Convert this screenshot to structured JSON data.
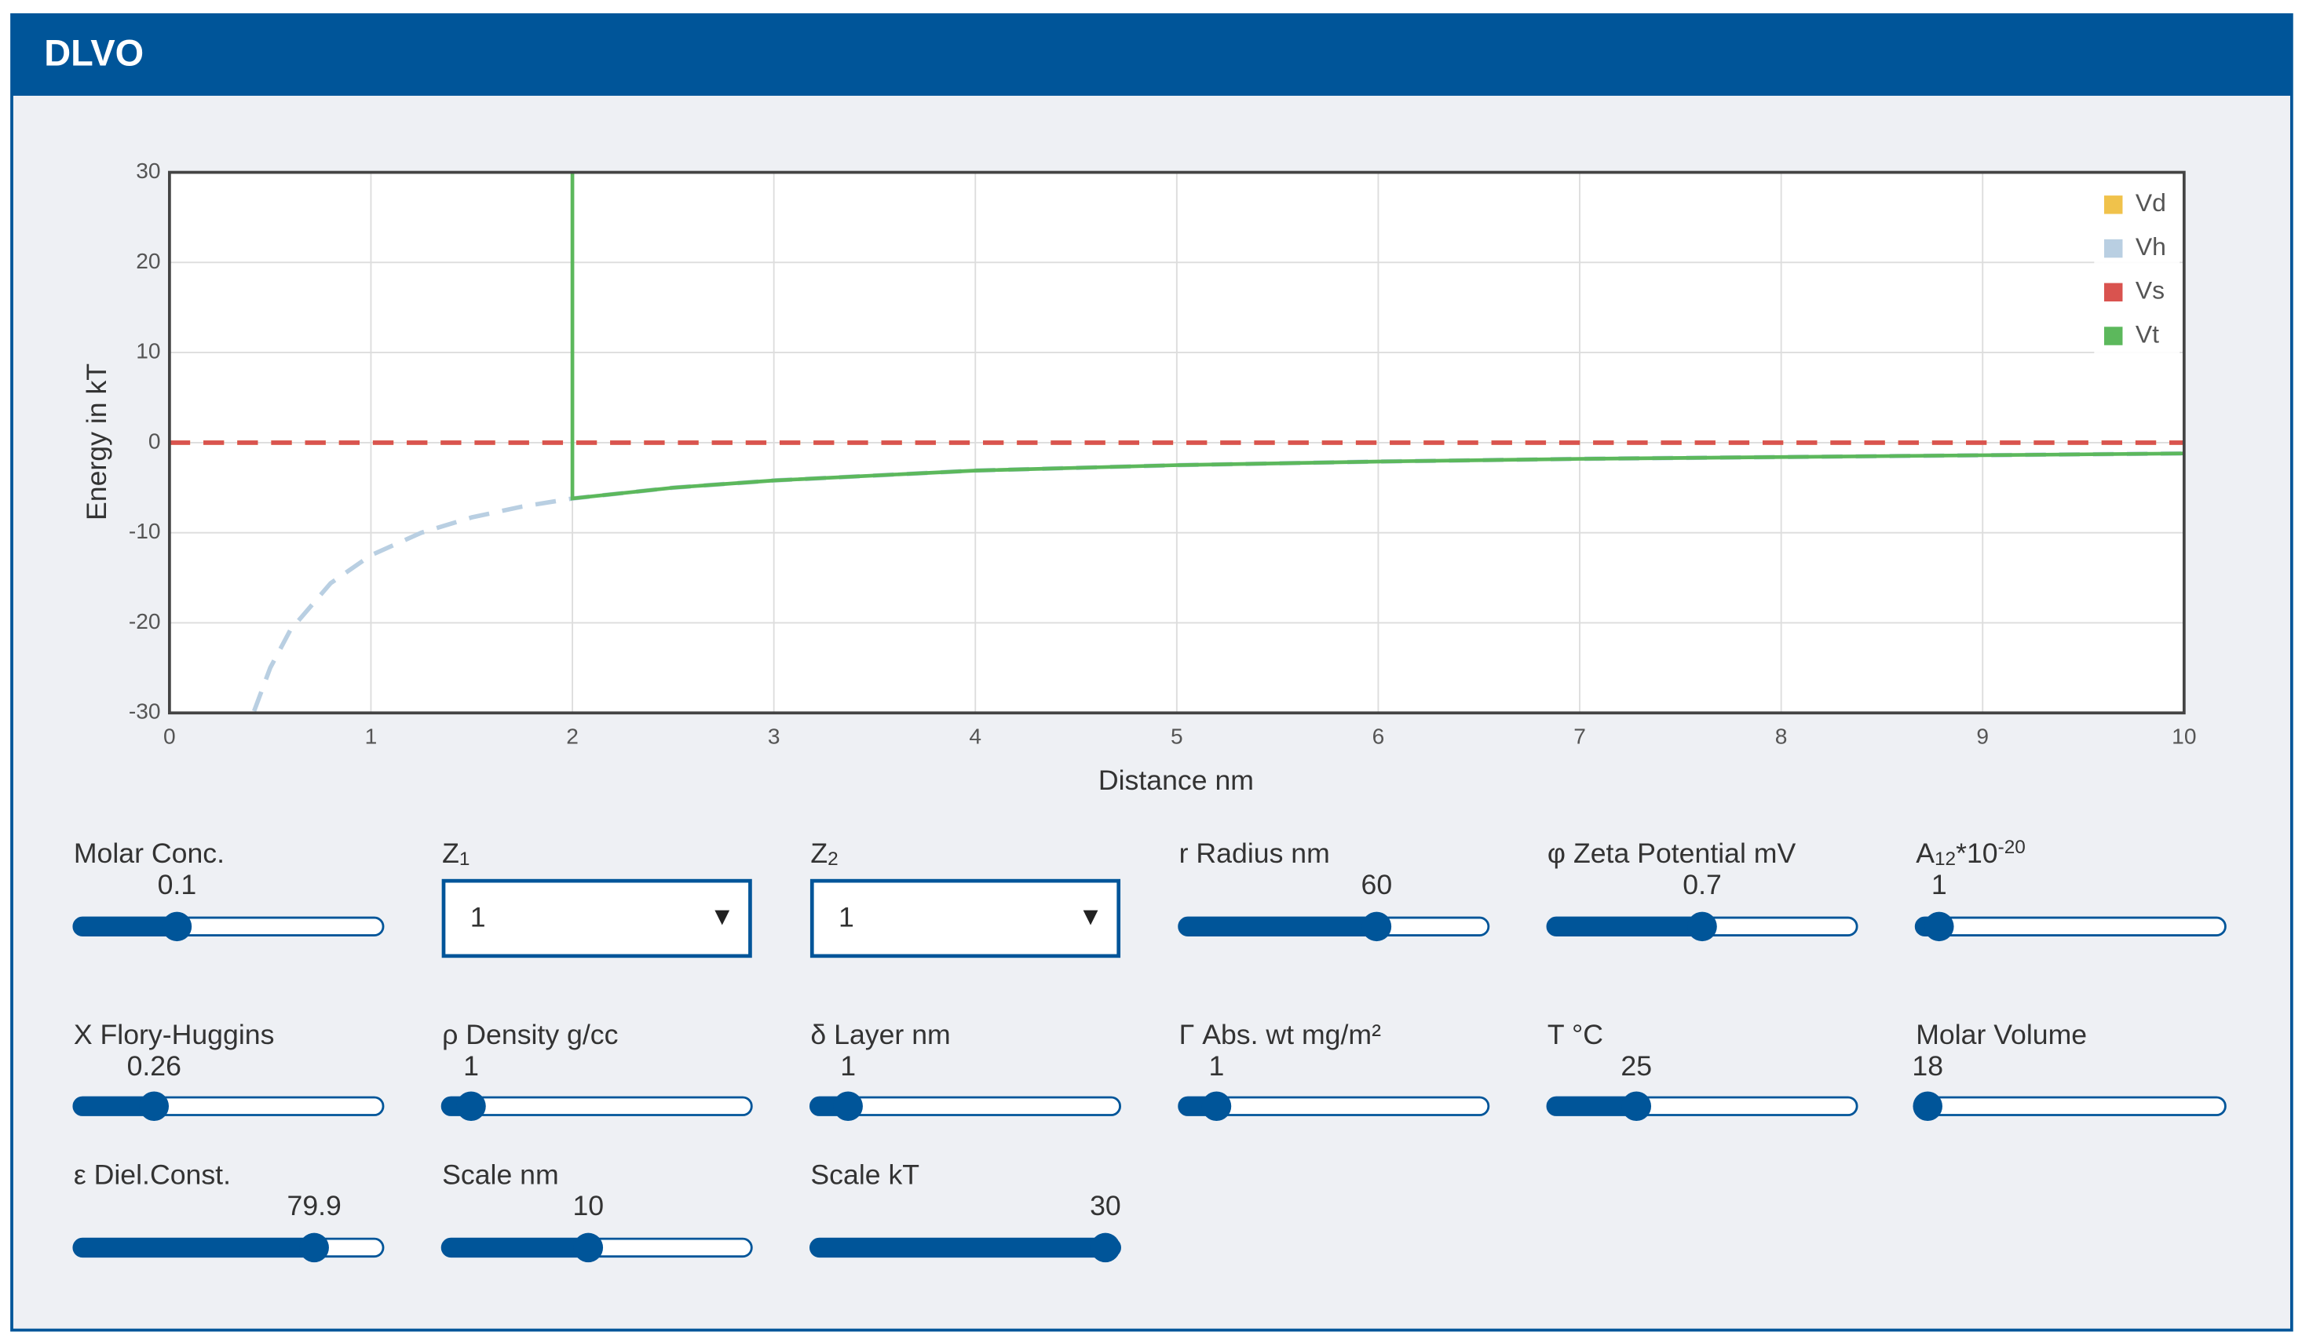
{
  "header": {
    "title": "DLVO"
  },
  "chart_data": {
    "type": "line",
    "xlabel": "Distance nm",
    "ylabel": "Energy in kT",
    "x": [
      0,
      0.42,
      0.5,
      0.6,
      0.8,
      1,
      1.25,
      1.5,
      1.75,
      2,
      2,
      2.5,
      3,
      4,
      5,
      6,
      7,
      8,
      9,
      10
    ],
    "series": [
      {
        "name": "Vd",
        "color": "#f0c24b",
        "dashed": true,
        "values": [
          0,
          0,
          0,
          0,
          0,
          0,
          0,
          0,
          0,
          0,
          0,
          0,
          0,
          0,
          0,
          0,
          0,
          0,
          0,
          0
        ]
      },
      {
        "name": "Vh",
        "color": "#b9cfe2",
        "dashed": true,
        "values": [
          null,
          -29.8,
          -25,
          -20.8,
          -15.6,
          -12.5,
          -10,
          -8.3,
          -7.1,
          -6.2,
          -6.2,
          -5,
          -4.2,
          -3.1,
          -2.5,
          -2.1,
          -1.8,
          -1.6,
          -1.4,
          -1.2
        ]
      },
      {
        "name": "Vs",
        "color": "#d9534f",
        "dashed": true,
        "values": [
          0,
          0,
          0,
          0,
          0,
          0,
          0,
          0,
          0,
          0,
          0,
          0,
          0,
          0,
          0,
          0,
          0,
          0,
          0,
          0
        ]
      },
      {
        "name": "Vt",
        "color": "#5cb85c",
        "dashed": false,
        "values": [
          null,
          null,
          null,
          null,
          null,
          null,
          null,
          null,
          null,
          30,
          -6.2,
          -5,
          -4.2,
          -3.1,
          -2.5,
          -2.1,
          -1.8,
          -1.6,
          -1.4,
          -1.2
        ]
      }
    ],
    "xlim": [
      0,
      10
    ],
    "ylim": [
      -30,
      30
    ],
    "xticks": [
      0,
      1,
      2,
      3,
      4,
      5,
      6,
      7,
      8,
      9,
      10
    ],
    "yticks": [
      -30,
      -20,
      -10,
      0,
      10,
      20,
      30
    ],
    "grid": true,
    "legend": "top-right"
  },
  "controls": [
    {
      "label": [
        "Molar Conc."
      ],
      "kind": "slider",
      "value": 0.1
    },
    {
      "label": [
        "Z",
        "1"
      ],
      "kind": "select",
      "value": 1
    },
    {
      "label": [
        "Z",
        "2"
      ],
      "kind": "select",
      "value": 1
    },
    {
      "label": [
        "r Radius nm"
      ],
      "kind": "slider",
      "value": 60
    },
    {
      "label": [
        "φ Zeta Potential mV"
      ],
      "kind": "slider",
      "value": 0.7
    },
    {
      "label": [
        "A",
        "12",
        "*10",
        "-20"
      ],
      "kind": "slider",
      "value": 1
    },
    {
      "label": [
        "X Flory-Huggins"
      ],
      "kind": "slider",
      "value": 0.26
    },
    {
      "label": [
        "ρ Density g/cc"
      ],
      "kind": "slider",
      "value": 1
    },
    {
      "label": [
        "δ Layer nm"
      ],
      "kind": "slider",
      "value": 1
    },
    {
      "label": [
        "Γ Abs. wt mg/m²"
      ],
      "kind": "slider",
      "value": 1
    },
    {
      "label": [
        "T °C"
      ],
      "kind": "slider",
      "value": 25
    },
    {
      "label": [
        "Molar Volume"
      ],
      "kind": "slider",
      "value": 18
    },
    {
      "label": [
        "ε Diel.Const."
      ],
      "kind": "slider",
      "value": 79.9
    },
    {
      "label": [
        "Scale nm"
      ],
      "kind": "slider",
      "value": 10
    },
    {
      "label": [
        "Scale kT"
      ],
      "kind": "slider",
      "value": 30
    }
  ]
}
